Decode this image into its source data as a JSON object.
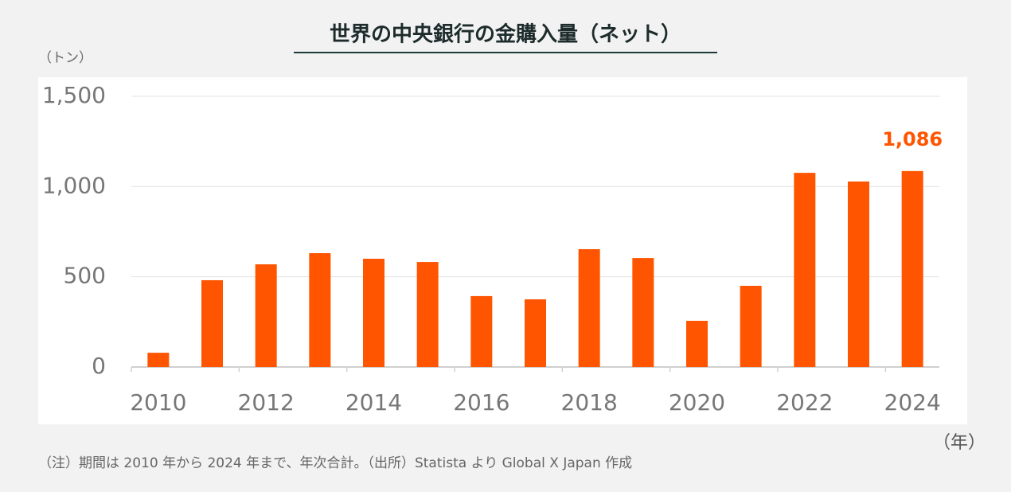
{
  "chart_data": {
    "type": "bar",
    "title": "世界の中央銀行の金購入量（ネット）",
    "y_unit": "（トン）",
    "x_unit": "（年）",
    "note": "（注）期間は 2010 年から 2024 年まで、年次合計。（出所）Statista より Global X Japan 作成",
    "categories": [
      "2010",
      null,
      "2012",
      null,
      "2014",
      null,
      "2016",
      null,
      "2018",
      null,
      "2020",
      null,
      "2022",
      null,
      "2024"
    ],
    "values": [
      79,
      481,
      569,
      631,
      600,
      582,
      393,
      375,
      653,
      604,
      256,
      450,
      1076,
      1028,
      1086
    ],
    "value_labels": [
      null,
      null,
      null,
      null,
      null,
      null,
      null,
      null,
      null,
      null,
      null,
      null,
      null,
      null,
      "1,086"
    ],
    "color": "#ff5500",
    "ylim": [
      0,
      1500
    ],
    "yticks": [
      0,
      500,
      {
        "value": 1000,
        "label": "1,000"
      },
      {
        "value": 1500,
        "label": "1,500"
      }
    ],
    "grid": true
  }
}
